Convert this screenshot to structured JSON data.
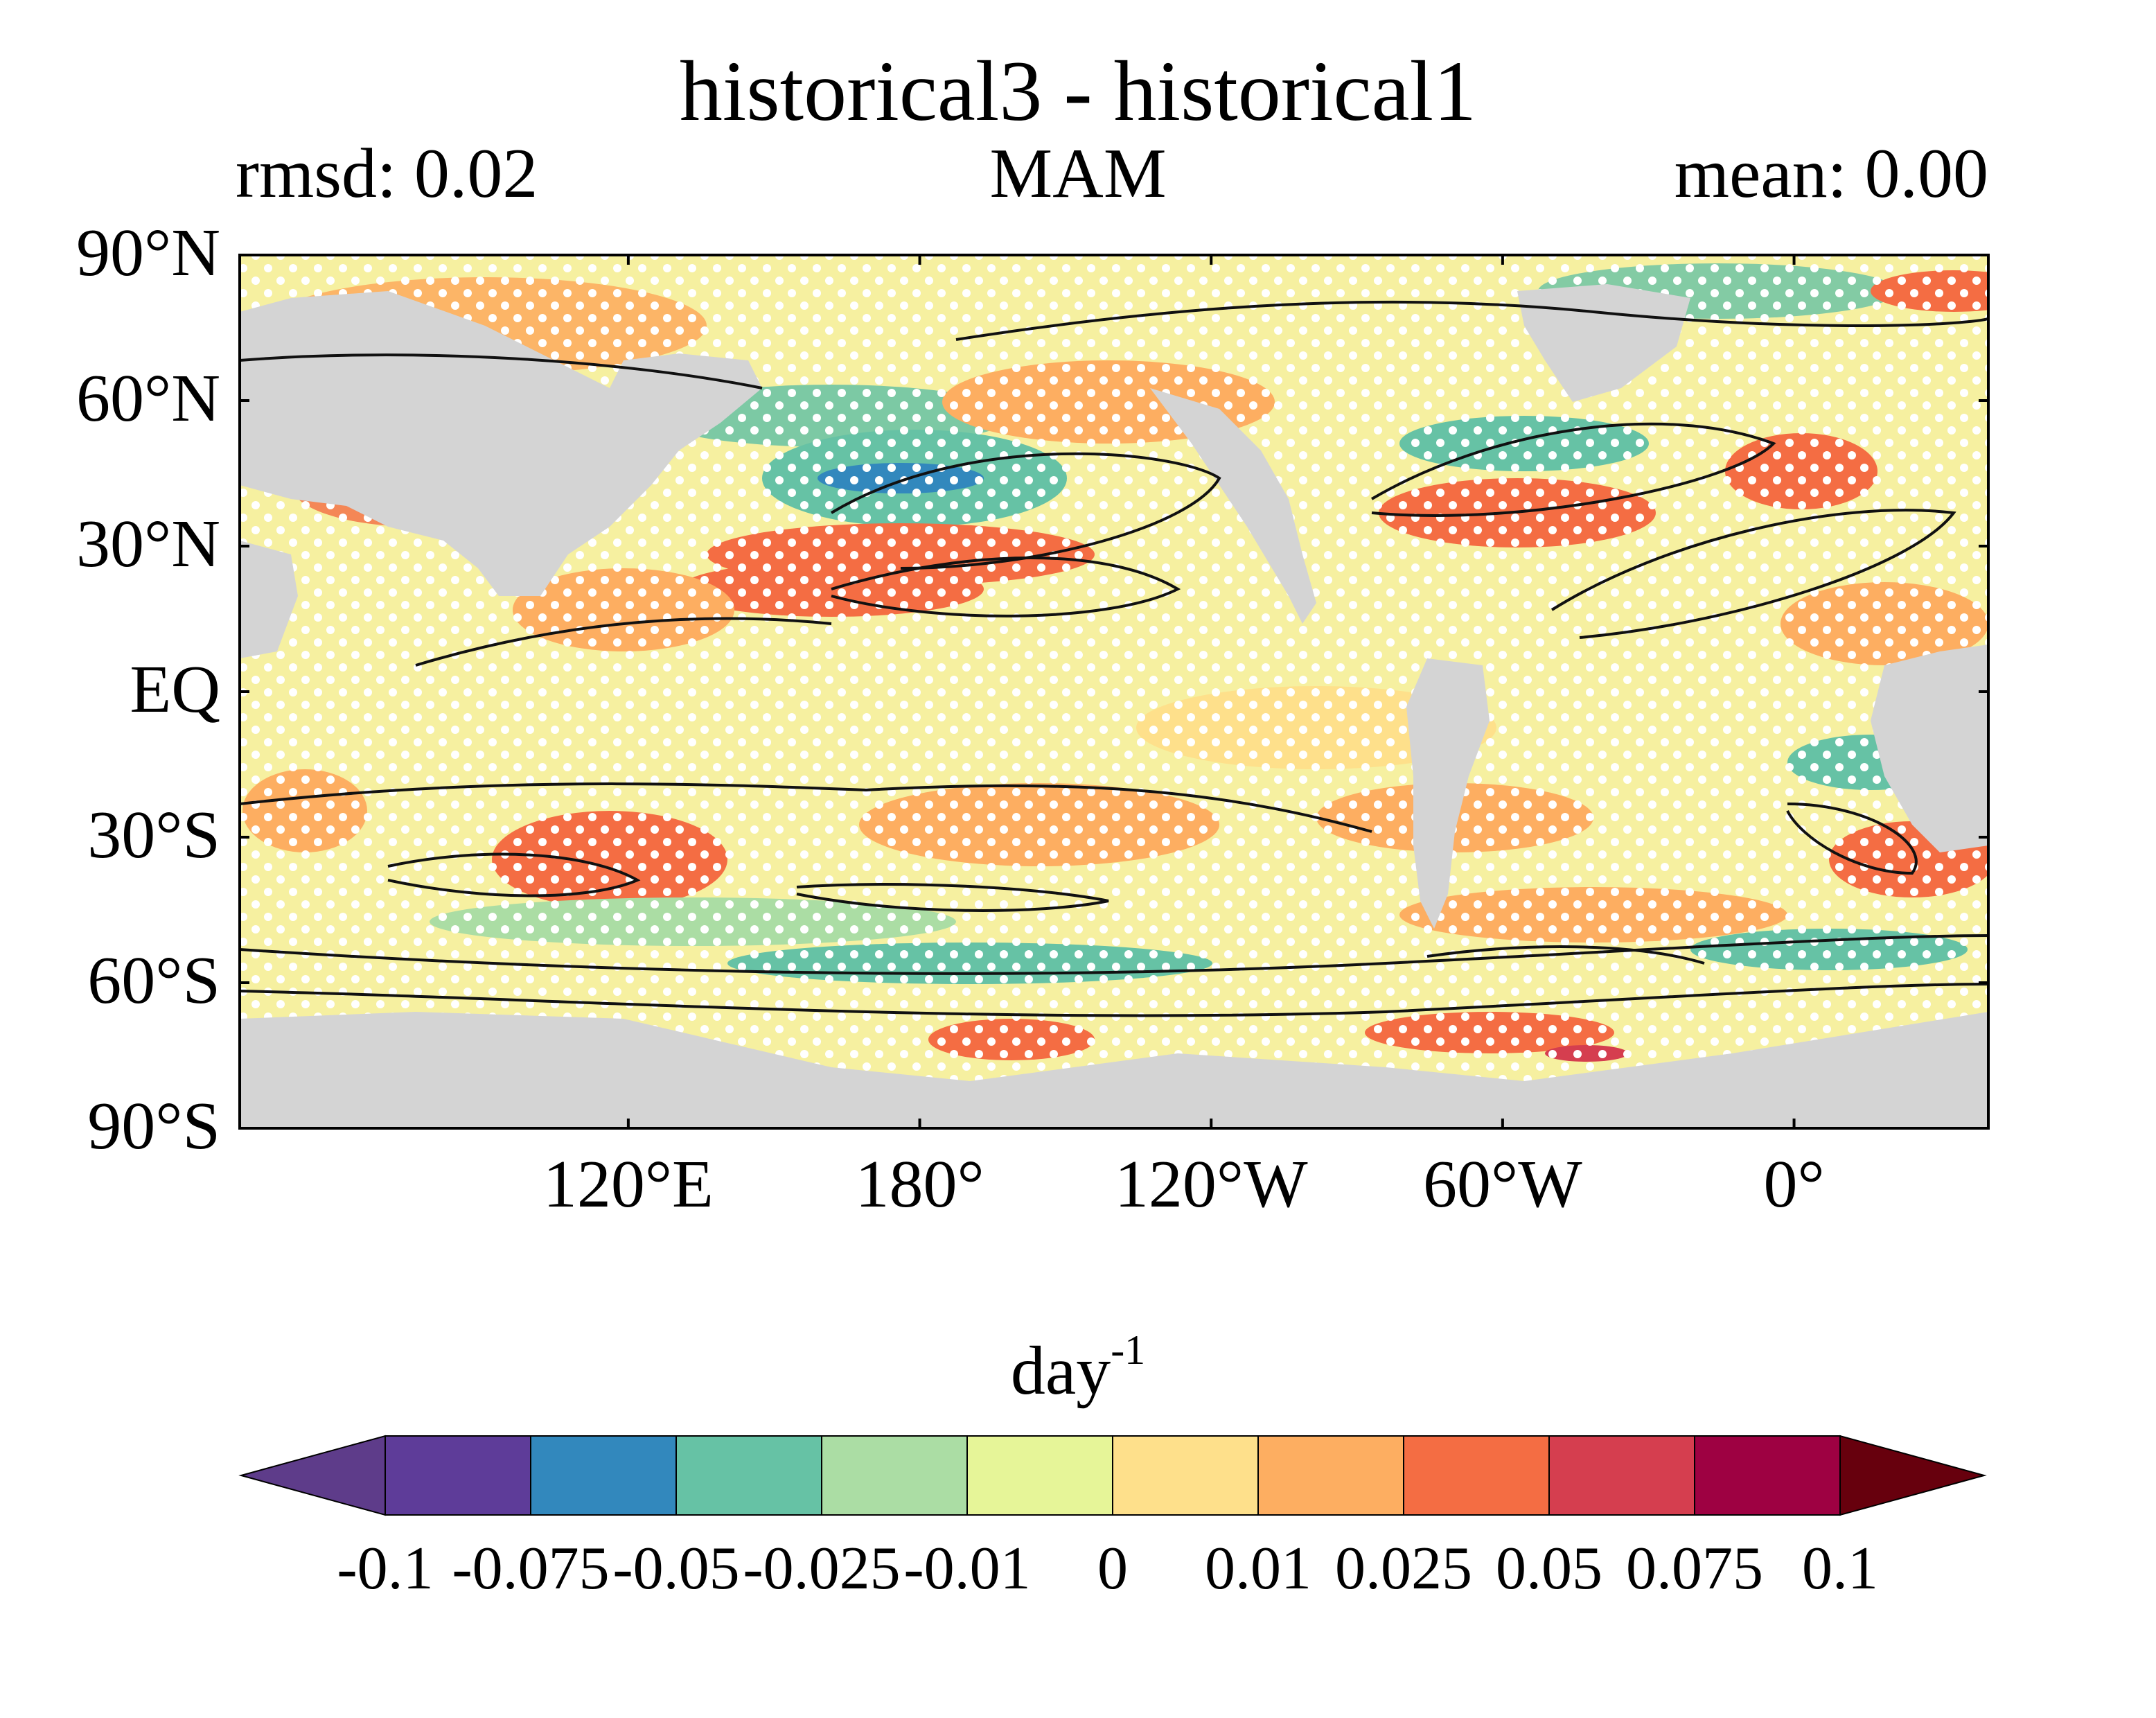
{
  "title": "historical3 - historical1",
  "stat_left": "rmsd: 0.02",
  "season": "MAM",
  "stat_right": "mean: 0.00",
  "latitude_labels": [
    "90°N",
    "60°N",
    "30°N",
    "EQ",
    "30°S",
    "60°S",
    "90°S"
  ],
  "latitude_values": [
    90,
    60,
    30,
    0,
    -30,
    -60,
    -90
  ],
  "longitude_labels": [
    "120°E",
    "180°",
    "120°W",
    "60°W",
    "0°"
  ],
  "longitude_values": [
    120,
    180,
    240,
    300,
    360
  ],
  "map_extent": {
    "lon_min": 40,
    "lon_max": 400,
    "lat_min": -90,
    "lat_max": 90
  },
  "units_base": "day",
  "units_exp": "-1",
  "colorbar": {
    "ticks": [
      "-0.1",
      "-0.075",
      "-0.05",
      "-0.025",
      "-0.01",
      "0",
      "0.01",
      "0.025",
      "0.05",
      "0.075",
      "0.1"
    ],
    "colors": [
      "#5e3c99",
      "#3288bd",
      "#66c2a5",
      "#abdda4",
      "#e6f598",
      "#fee08b",
      "#fdae61",
      "#f46d43",
      "#d53e4f",
      "#9e0142"
    ],
    "under_color": "#5e3c8a",
    "over_color": "#67000d"
  },
  "colors": {
    "land": "#d4d4d4",
    "stipple": "#ffffff",
    "contour": "#111111"
  }
}
